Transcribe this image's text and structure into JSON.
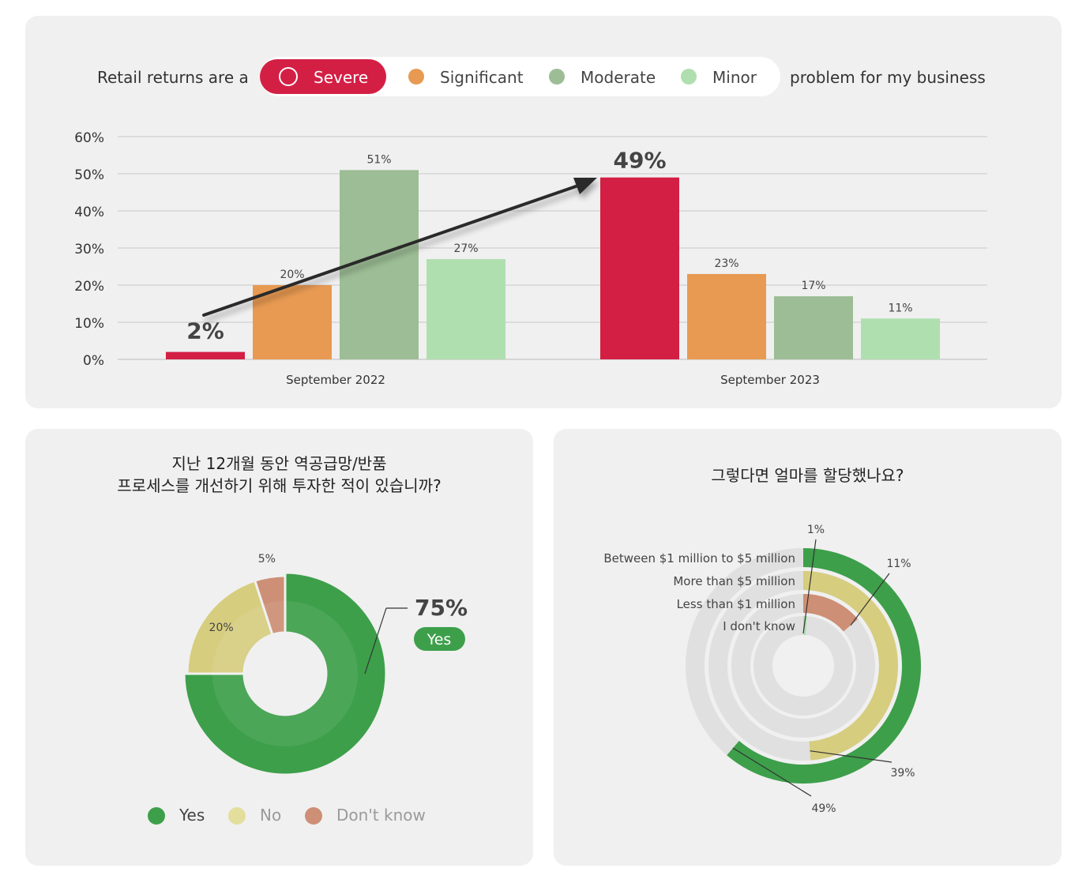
{
  "top_panel": {
    "legend_prefix": "Retail returns are a",
    "legend_suffix": "problem for my business",
    "legend": [
      {
        "label": "Severe",
        "color": "#d41f45",
        "selected": true
      },
      {
        "label": "Significant",
        "color": "#e89a52",
        "selected": false
      },
      {
        "label": "Moderate",
        "color": "#9cbd95",
        "selected": false
      },
      {
        "label": "Minor",
        "color": "#afdfae",
        "selected": false
      }
    ],
    "highlight_start": "2%",
    "highlight_end": "49%"
  },
  "bottom_left": {
    "title_line1": "지난 12개월 동안 역공급망/반품",
    "title_line2": "프로세스를 개선하기 위해 투자한 적이 있습니까?",
    "callout_value": "75%",
    "callout_badge": "Yes",
    "legend": [
      {
        "label": "Yes",
        "color": "#3d9f4a"
      },
      {
        "label": "No",
        "color": "#d6cd7f"
      },
      {
        "label": "Don't know",
        "color": "#cd8f75"
      }
    ]
  },
  "bottom_right": {
    "title": "그렇다면 얼마를 할당했나요?"
  },
  "chart_data": [
    {
      "type": "bar",
      "categories": [
        "September 2022",
        "September 2023"
      ],
      "series": [
        {
          "name": "Severe",
          "color": "#d41f45",
          "values": [
            2,
            49
          ],
          "labels": [
            "2%",
            "49%"
          ]
        },
        {
          "name": "Significant",
          "color": "#e89a52",
          "values": [
            20,
            23
          ],
          "labels": [
            "20%",
            "23%"
          ]
        },
        {
          "name": "Moderate",
          "color": "#9cbd95",
          "values": [
            51,
            17
          ],
          "labels": [
            "51%",
            "17%"
          ]
        },
        {
          "name": "Minor",
          "color": "#afdfae",
          "values": [
            27,
            11
          ],
          "labels": [
            "27%",
            "11%"
          ]
        }
      ],
      "yticks": [
        "0%",
        "10%",
        "20%",
        "30%",
        "40%",
        "50%",
        "60%"
      ],
      "ylim": [
        0,
        60
      ],
      "grid": true
    },
    {
      "type": "pie",
      "slices": [
        {
          "name": "Yes",
          "value": 75,
          "label": "75%",
          "color": "#3d9f4a"
        },
        {
          "name": "No",
          "value": 20,
          "label": "20%",
          "color": "#d6cd7f"
        },
        {
          "name": "Don't know",
          "value": 5,
          "label": "5%",
          "color": "#cd8f75"
        }
      ]
    },
    {
      "type": "radial_bar",
      "max": 60,
      "track_color": "#e0e0e0",
      "bars": [
        {
          "name": "Between $1 million to $5 million",
          "value": 49,
          "label": "49%",
          "color": "#3d9f4a"
        },
        {
          "name": "More than $5 million",
          "value": 39,
          "label": "39%",
          "color": "#d6cd7f"
        },
        {
          "name": "Less than $1 million",
          "value": 11,
          "label": "11%",
          "color": "#cd8f75"
        },
        {
          "name": "I don't know",
          "value": 1,
          "label": "1%",
          "color": "#afdfae"
        }
      ]
    }
  ]
}
